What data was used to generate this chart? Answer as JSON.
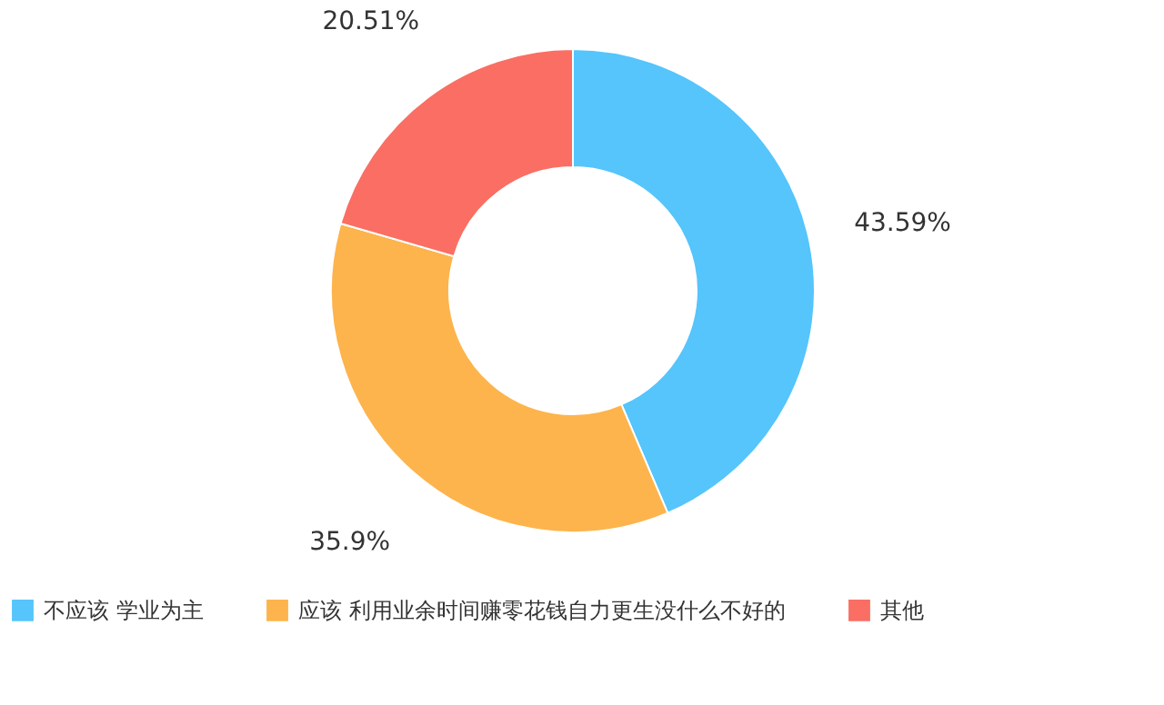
{
  "chart_data": {
    "type": "donut",
    "categories": [
      "不应该 学业为主",
      "应该 利用业余时间赚零花钱自力更生没什么不好的",
      "其他"
    ],
    "values": [
      43.59,
      35.9,
      20.51
    ],
    "colors": [
      "#55c5fb",
      "#fdb44c",
      "#fa6e63"
    ],
    "value_labels": [
      "43.59%",
      "35.9%",
      "20.51%"
    ],
    "legend": "bottom"
  }
}
